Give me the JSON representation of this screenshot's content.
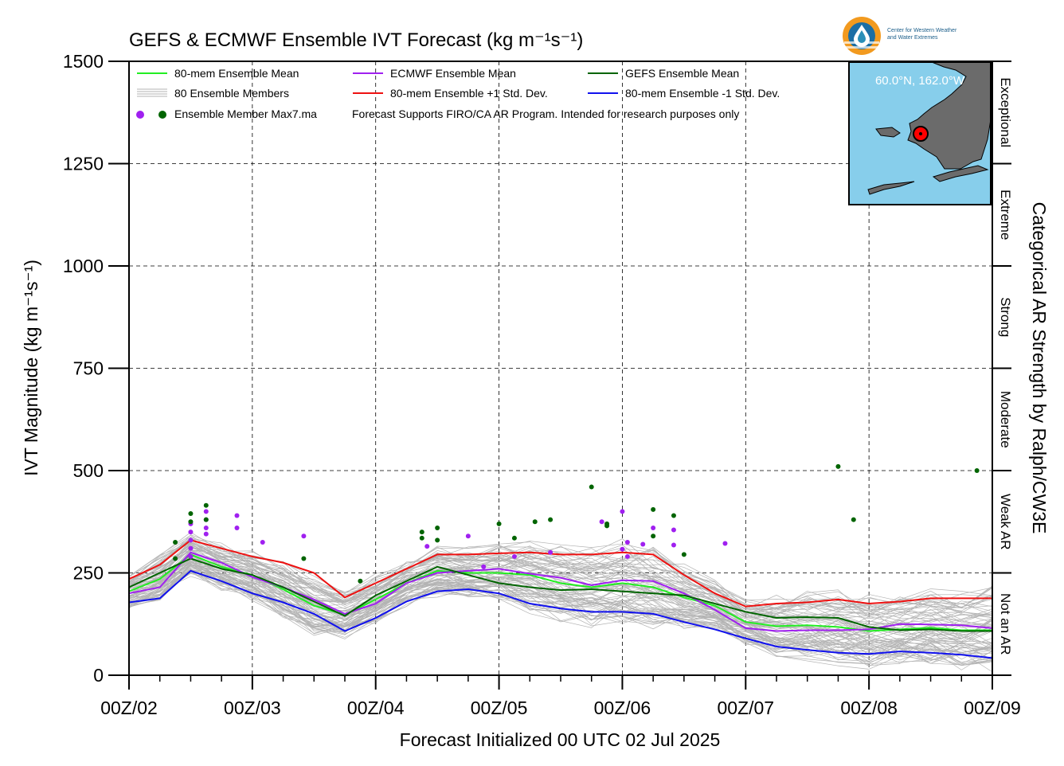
{
  "logo": {
    "line1": "Center for Western Weather",
    "line2": "and Water Extremes",
    "colors": {
      "outer": "#f29a1f",
      "inner": "#1b6ea5",
      "bands": "#2a8fb8"
    }
  },
  "colors": {
    "grid": "#000000",
    "members": "#b3b3b3",
    "mean80": "#22ee22",
    "ecmwf": "#a020f0",
    "gefs": "#006400",
    "plus1": "#ee1111",
    "minus1": "#1111ee",
    "map_water": "#87ceeb",
    "map_land": "#6b6b6b",
    "marker": "#ff0000"
  },
  "inset_map": {
    "label": "60.0°N, 162.0°W"
  },
  "chart_data": {
    "type": "line",
    "title": "GEFS & ECMWF Ensemble IVT Forecast (kg m⁻¹s⁻¹)",
    "xlabel": "Forecast Initialized 00 UTC 02 Jul 2025",
    "ylabel": "IVT Magnitude (kg m⁻¹s⁻¹)",
    "right_axis_label": "Categorical AR Strength by Ralph/CW3E",
    "ylim": [
      0,
      1500
    ],
    "xlim": [
      0,
      168
    ],
    "x_units": "forecast hours",
    "grid": true,
    "yticks": [
      {
        "value": 0,
        "label": "0"
      },
      {
        "value": 250,
        "label": "250"
      },
      {
        "value": 500,
        "label": "500"
      },
      {
        "value": 750,
        "label": "750"
      },
      {
        "value": 1000,
        "label": "1000"
      },
      {
        "value": 1250,
        "label": "1250"
      },
      {
        "value": 1500,
        "label": "1500"
      }
    ],
    "xticks": [
      {
        "value": 0,
        "label": "00Z/02"
      },
      {
        "value": 24,
        "label": "00Z/03"
      },
      {
        "value": 48,
        "label": "00Z/04"
      },
      {
        "value": 72,
        "label": "00Z/05"
      },
      {
        "value": 96,
        "label": "00Z/06"
      },
      {
        "value": 120,
        "label": "00Z/07"
      },
      {
        "value": 144,
        "label": "00Z/08"
      },
      {
        "value": 168,
        "label": "00Z/09"
      }
    ],
    "categories": [
      {
        "label": "Not an AR",
        "from": 0,
        "to": 250
      },
      {
        "label": "Weak AR",
        "from": 250,
        "to": 500
      },
      {
        "label": "Moderate",
        "from": 500,
        "to": 750
      },
      {
        "label": "Strong",
        "from": 750,
        "to": 1000
      },
      {
        "label": "Extreme",
        "from": 1000,
        "to": 1250
      },
      {
        "label": "Exceptional",
        "from": 1250,
        "to": 1500
      }
    ],
    "legend": {
      "placement": "top-left",
      "entries": [
        {
          "key": "mean80",
          "label": "80-mem Ensemble Mean"
        },
        {
          "key": "ecmwf",
          "label": "ECMWF Ensemble Mean"
        },
        {
          "key": "gefs",
          "label": "GEFS Ensemble Mean"
        },
        {
          "key": "members",
          "label": "80 Ensemble Members"
        },
        {
          "key": "plus1",
          "label": "80-mem Ensemble +1 Std. Dev."
        },
        {
          "key": "minus1",
          "label": "80-mem Ensemble -1 Std. Dev."
        }
      ],
      "max_label": "Ensemble Member Max7.ma",
      "note": "Forecast Supports FIRO/CA AR Program. Intended for research purposes only"
    },
    "x": [
      0,
      6,
      12,
      18,
      24,
      30,
      36,
      42,
      48,
      54,
      60,
      66,
      72,
      78,
      84,
      90,
      96,
      102,
      108,
      114,
      120,
      126,
      132,
      138,
      144,
      150,
      156,
      162,
      168
    ],
    "series": [
      {
        "name": "80-mem Ensemble Mean",
        "key": "mean80",
        "values": [
          205,
          235,
          295,
          265,
          245,
          210,
          170,
          148,
          185,
          225,
          255,
          250,
          250,
          245,
          225,
          215,
          225,
          215,
          190,
          170,
          130,
          120,
          122,
          118,
          108,
          112,
          116,
          110,
          110
        ]
      },
      {
        "name": "ECMWF Ensemble Mean",
        "key": "ecmwf",
        "values": [
          200,
          215,
          300,
          275,
          240,
          215,
          185,
          150,
          175,
          225,
          250,
          255,
          260,
          248,
          238,
          220,
          232,
          230,
          200,
          160,
          115,
          108,
          110,
          110,
          112,
          125,
          124,
          122,
          115
        ]
      },
      {
        "name": "GEFS Ensemble Mean",
        "key": "gefs",
        "values": [
          215,
          250,
          285,
          260,
          245,
          215,
          180,
          145,
          195,
          230,
          265,
          245,
          225,
          215,
          208,
          210,
          205,
          200,
          195,
          175,
          155,
          140,
          142,
          140,
          118,
          110,
          112,
          108,
          108
        ]
      },
      {
        "name": "80-mem Ensemble +1 Std. Dev.",
        "key": "plus1",
        "values": [
          235,
          270,
          330,
          310,
          290,
          275,
          250,
          190,
          225,
          260,
          295,
          295,
          298,
          300,
          295,
          295,
          300,
          295,
          245,
          200,
          168,
          175,
          178,
          185,
          175,
          180,
          188,
          188,
          188
        ]
      },
      {
        "name": "80-mem Ensemble -1 Std. Dev.",
        "key": "minus1",
        "values": [
          178,
          188,
          255,
          230,
          200,
          178,
          150,
          108,
          140,
          180,
          205,
          210,
          200,
          175,
          163,
          155,
          155,
          150,
          130,
          112,
          90,
          70,
          62,
          55,
          52,
          58,
          55,
          50,
          42
        ]
      }
    ],
    "max_points": {
      "ecmwf": [
        [
          12,
          290
        ],
        [
          12,
          310
        ],
        [
          12,
          330
        ],
        [
          12,
          350
        ],
        [
          12,
          370
        ],
        [
          15,
          345
        ],
        [
          15,
          360
        ],
        [
          15,
          380
        ],
        [
          15,
          400
        ],
        [
          21,
          390
        ],
        [
          21,
          360
        ],
        [
          26,
          325
        ],
        [
          34,
          340
        ],
        [
          58,
          315
        ],
        [
          66,
          340
        ],
        [
          69,
          265
        ],
        [
          92,
          375
        ],
        [
          97,
          290
        ],
        [
          97,
          325
        ],
        [
          100,
          320
        ],
        [
          102,
          360
        ],
        [
          106,
          355
        ],
        [
          106,
          318
        ],
        [
          116,
          322
        ],
        [
          96,
          400
        ],
        [
          96,
          308
        ],
        [
          75,
          290
        ],
        [
          82,
          300
        ]
      ],
      "gefs": [
        [
          9,
          285
        ],
        [
          9,
          325
        ],
        [
          12,
          395
        ],
        [
          12,
          375
        ],
        [
          15,
          415
        ],
        [
          15,
          380
        ],
        [
          34,
          285
        ],
        [
          45,
          230
        ],
        [
          57,
          335
        ],
        [
          57,
          350
        ],
        [
          60,
          330
        ],
        [
          60,
          360
        ],
        [
          72,
          370
        ],
        [
          75,
          335
        ],
        [
          79,
          375
        ],
        [
          82,
          380
        ],
        [
          90,
          460
        ],
        [
          93,
          370
        ],
        [
          93,
          365
        ],
        [
          102,
          340
        ],
        [
          102,
          405
        ],
        [
          106,
          390
        ],
        [
          108,
          295
        ],
        [
          138,
          510
        ],
        [
          141,
          380
        ],
        [
          165,
          500
        ]
      ]
    }
  }
}
